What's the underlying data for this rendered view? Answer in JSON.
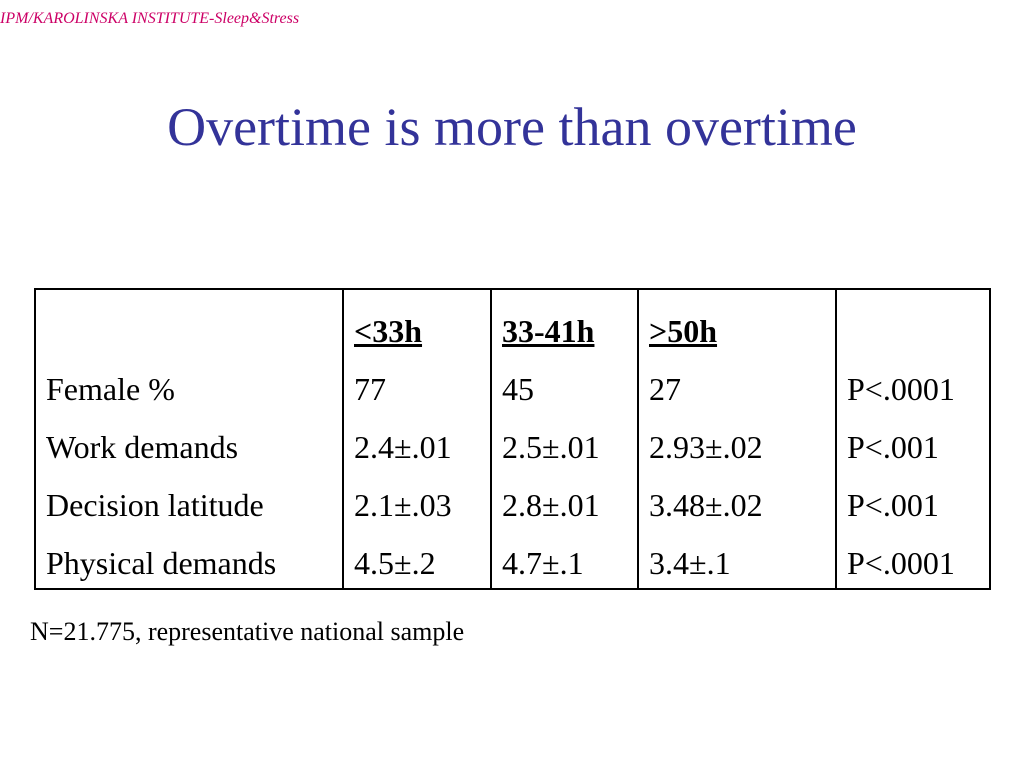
{
  "header": {
    "tag": "IPM/KAROLINSKA INSTITUTE-Sleep&Stress"
  },
  "slide": {
    "title": "Overtime is more than overtime"
  },
  "table": {
    "columns": [
      "",
      "<33h",
      "33-41h",
      ">50h",
      ""
    ],
    "rows": [
      [
        "Female %",
        "77",
        "45",
        "27",
        "P<.0001"
      ],
      [
        "Work demands",
        "2.4±.01",
        "2.5±.01",
        "2.93±.02",
        "P<.001"
      ],
      [
        "Decision latitude",
        "2.1±.03",
        "2.8±.01",
        "3.48±.02",
        "P<.001"
      ],
      [
        "Physical demands",
        "4.5±.2",
        "4.7±.1",
        "3.4±.1",
        "P<.0001"
      ]
    ]
  },
  "footnote": "N=21.775, representative national sample",
  "colors": {
    "title": "#333399",
    "header_tag": "#cc0066",
    "text": "#000000",
    "background": "#ffffff"
  }
}
